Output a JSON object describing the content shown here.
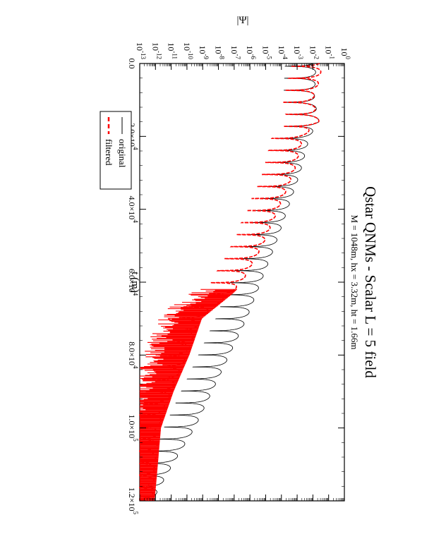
{
  "chart_data": {
    "type": "line",
    "title": "Qstar QNMs - Scalar L = 5 field",
    "subtitle": "M = 1048m, hx = 3.32m, ht = 1.66m",
    "xlabel": "t (m)",
    "ylabel": "|Ψ|",
    "xlim": [
      0,
      120000
    ],
    "ylim": [
      -13,
      0
    ],
    "yscale": "log",
    "grid": false,
    "orientation": "rotated-90-ccw",
    "legend_position": "top-right",
    "x_ticks": [
      {
        "value": 0,
        "label": "0.0"
      },
      {
        "value": 20000,
        "label": "2.0×10",
        "exp": "4"
      },
      {
        "value": 40000,
        "label": "4.0×10",
        "exp": "4"
      },
      {
        "value": 60000,
        "label": "6.0×10",
        "exp": "4"
      },
      {
        "value": 80000,
        "label": "8.0×10",
        "exp": "4"
      },
      {
        "value": 100000,
        "label": "1.0×10",
        "exp": "5"
      },
      {
        "value": 120000,
        "label": "1.2×10",
        "exp": "5"
      }
    ],
    "y_ticks": [
      {
        "value": 0,
        "label": "10",
        "exp": "0"
      },
      {
        "value": -1,
        "label": "10",
        "exp": "-1"
      },
      {
        "value": -2,
        "label": "10",
        "exp": "-2"
      },
      {
        "value": -3,
        "label": "10",
        "exp": "-3"
      },
      {
        "value": -4,
        "label": "10",
        "exp": "-4"
      },
      {
        "value": -5,
        "label": "10",
        "exp": "-5"
      },
      {
        "value": -6,
        "label": "10",
        "exp": "-6"
      },
      {
        "value": -7,
        "label": "10",
        "exp": "-7"
      },
      {
        "value": -8,
        "label": "10",
        "exp": "-8"
      },
      {
        "value": -9,
        "label": "10",
        "exp": "-9"
      },
      {
        "value": -10,
        "label": "10",
        "exp": "-10"
      },
      {
        "value": -11,
        "label": "10",
        "exp": "-11"
      },
      {
        "value": -12,
        "label": "10",
        "exp": "-12"
      },
      {
        "value": -13,
        "label": "10",
        "exp": "-13"
      }
    ],
    "series": [
      {
        "name": "original",
        "color": "#000000",
        "dash": "solid",
        "envelope_log10": [
          [
            0,
            -1.8
          ],
          [
            10000,
            -1.9
          ],
          [
            16000,
            -1.6
          ],
          [
            20000,
            -2.2
          ],
          [
            30000,
            -2.8
          ],
          [
            40000,
            -3.6
          ],
          [
            50000,
            -4.4
          ],
          [
            60000,
            -5.3
          ],
          [
            70000,
            -6.2
          ],
          [
            80000,
            -7.3
          ],
          [
            90000,
            -8.4
          ],
          [
            100000,
            -9.5
          ],
          [
            110000,
            -10.9
          ],
          [
            120000,
            -12.2
          ]
        ]
      },
      {
        "name": "filtered",
        "color": "#ff0000",
        "dash": "dashed",
        "envelope_log10": [
          [
            0,
            -1.4
          ],
          [
            5000,
            -1.6
          ],
          [
            10000,
            -2.0
          ],
          [
            16000,
            -1.6
          ],
          [
            20000,
            -2.6
          ],
          [
            30000,
            -3.2
          ],
          [
            40000,
            -4.2
          ],
          [
            50000,
            -5.2
          ],
          [
            60000,
            -6.5
          ],
          [
            63000,
            -7.2
          ],
          [
            70000,
            -9.2
          ],
          [
            80000,
            -10.0
          ],
          [
            90000,
            -11.0
          ],
          [
            100000,
            -11.8
          ],
          [
            110000,
            -12.0
          ],
          [
            120000,
            -12.2
          ]
        ]
      }
    ]
  }
}
